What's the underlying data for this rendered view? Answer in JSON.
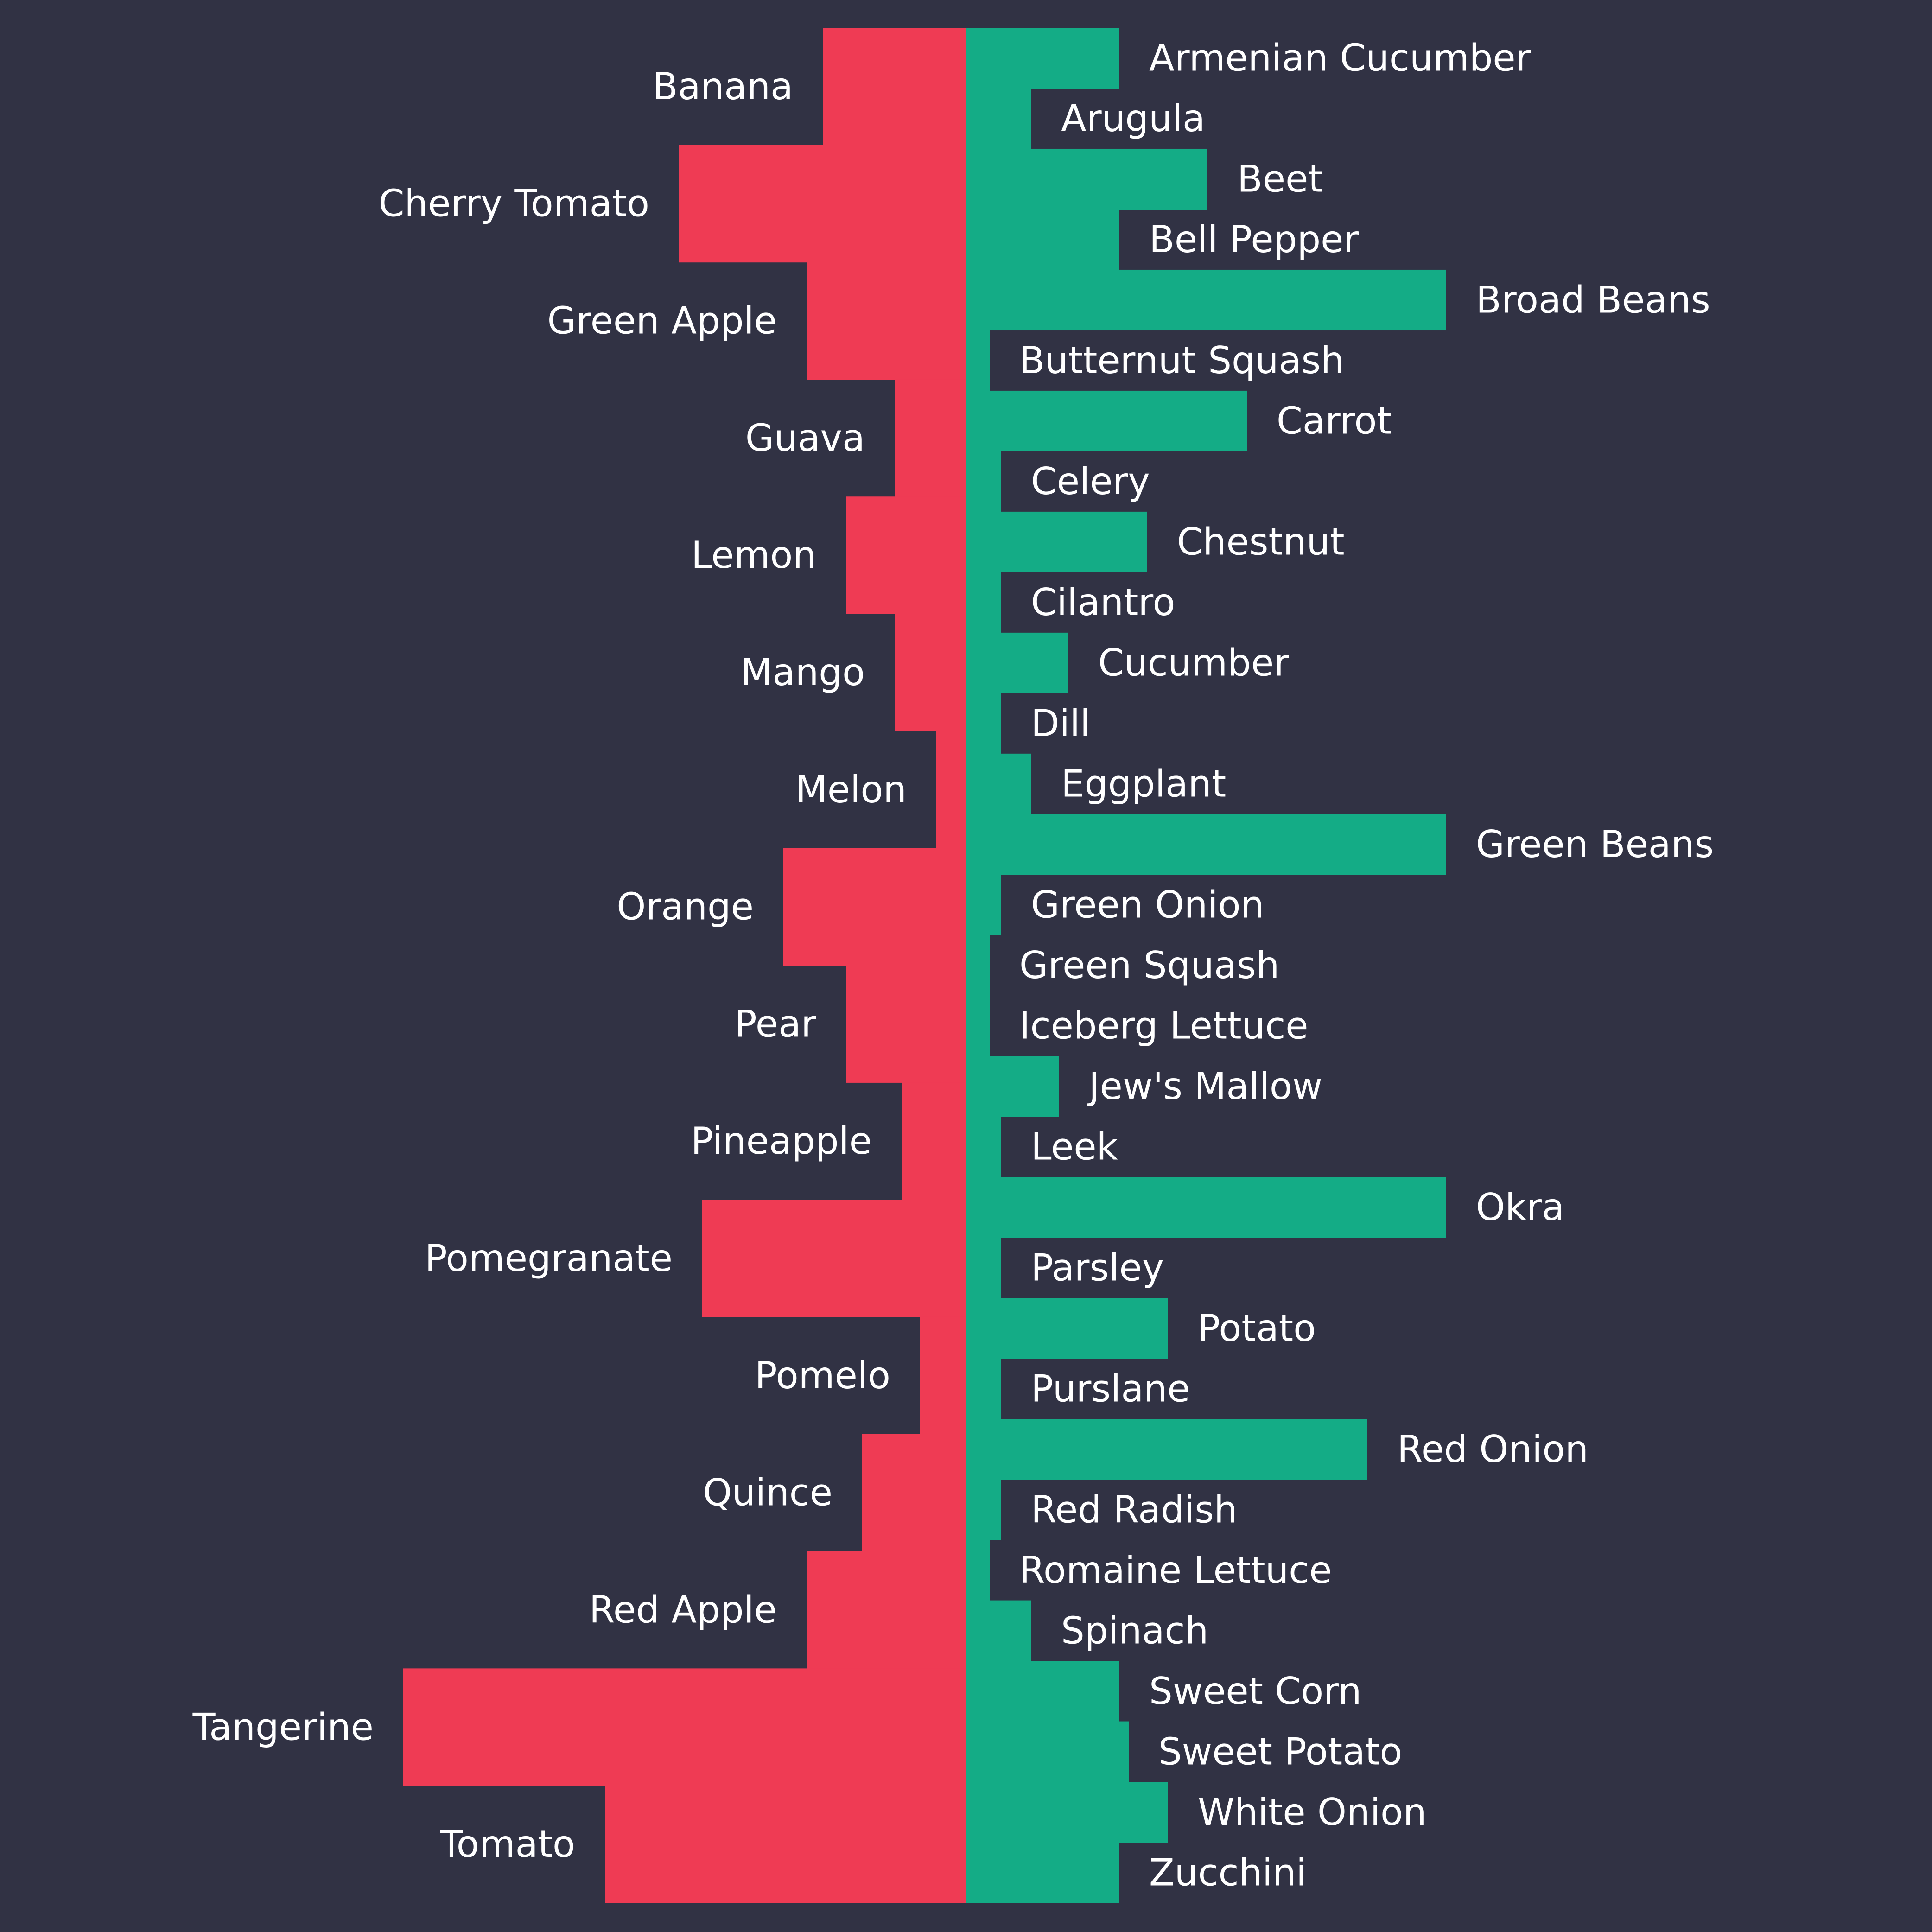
{
  "chart_data": {
    "type": "bar",
    "orientation": "horizontal",
    "layout": "diverging",
    "colors": {
      "background": "#313244",
      "fruits": "#ef3b54",
      "vegetables": "#14ac86",
      "label": "#ffffff"
    },
    "fruits": {
      "categories": [
        "Banana",
        "Cherry Tomato",
        "Green Apple",
        "Guava",
        "Lemon",
        "Mango",
        "Melon",
        "Orange",
        "Pear",
        "Pineapple",
        "Pomegranate",
        "Pomelo",
        "Quince",
        "Red Apple",
        "Tangerine",
        "Tomato"
      ],
      "values": [
        310,
        620,
        345,
        155,
        260,
        155,
        65,
        395,
        260,
        140,
        570,
        100,
        225,
        345,
        1215,
        780
      ]
    },
    "vegetables": {
      "categories": [
        "Armenian Cucumber",
        "Arugula",
        "Beet",
        "Bell Pepper",
        "Broad Beans",
        "Butternut Squash",
        "Carrot",
        "Celery",
        "Chestnut",
        "Cilantro",
        "Cucumber",
        "Dill",
        "Eggplant",
        "Green Beans",
        "Green Onion",
        "Green Squash",
        "Iceberg Lettuce",
        "Jew's Mallow",
        "Leek",
        "Okra",
        "Parsley",
        "Potato",
        "Purslane",
        "Red Onion",
        "Red Radish",
        "Romaine Lettuce",
        "Spinach",
        "Sweet Corn",
        "Sweet Potato",
        "White Onion",
        "Zucchini"
      ],
      "values": [
        330,
        140,
        520,
        330,
        1035,
        50,
        605,
        75,
        390,
        75,
        220,
        75,
        140,
        1035,
        75,
        50,
        50,
        200,
        75,
        1035,
        75,
        435,
        75,
        865,
        75,
        50,
        140,
        330,
        350,
        435,
        330
      ]
    }
  }
}
